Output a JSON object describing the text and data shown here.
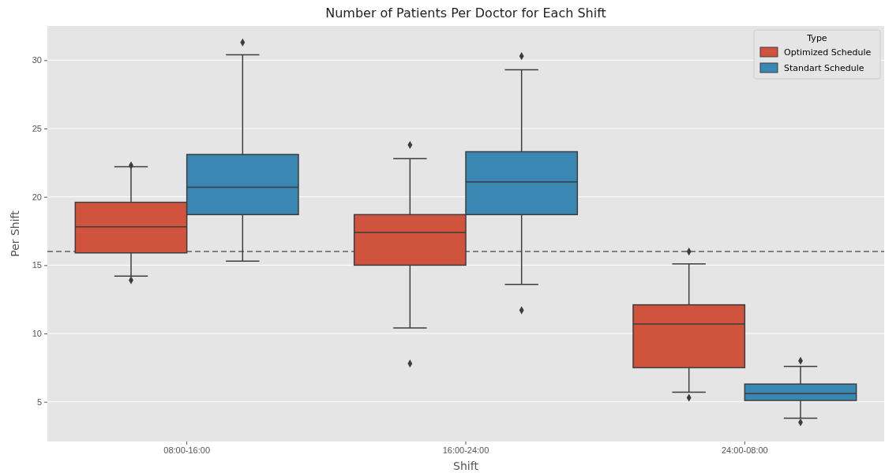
{
  "chart_data": {
    "type": "box",
    "title": "Number of Patients Per Doctor for Each Shift",
    "xlabel": "Shift",
    "ylabel": "Per Shift",
    "legend_title": "Type",
    "categories": [
      "08:00-16:00",
      "16:00-24:00",
      "24:00-08:00"
    ],
    "ylim": [
      2.1,
      32.5
    ],
    "yticks": [
      5,
      10,
      15,
      20,
      25,
      30
    ],
    "grid": "y",
    "legend": "top right",
    "ref_lines": [
      {
        "axis": "y",
        "value": 16,
        "color": "#808080",
        "line_style": "dashed"
      }
    ],
    "series": [
      {
        "name": "Optimized Schedule",
        "color": "#d0533e",
        "boxes": [
          {
            "low": 14.2,
            "q1": 15.9,
            "median": 17.8,
            "q3": 19.6,
            "high": 22.2,
            "outliers": [
              13.9,
              22.3
            ]
          },
          {
            "low": 10.4,
            "q1": 15.0,
            "median": 17.4,
            "q3": 18.7,
            "high": 22.8,
            "outliers": [
              7.8,
              23.8
            ]
          },
          {
            "low": 5.7,
            "q1": 7.5,
            "median": 10.7,
            "q3": 12.1,
            "high": 15.1,
            "outliers": [
              5.3,
              16.0
            ]
          }
        ]
      },
      {
        "name": "Standart Schedule",
        "color": "#3a87b4",
        "boxes": [
          {
            "low": 15.3,
            "q1": 18.7,
            "median": 20.7,
            "q3": 23.1,
            "high": 30.4,
            "outliers": [
              31.3
            ]
          },
          {
            "low": 13.6,
            "q1": 18.7,
            "median": 21.1,
            "q3": 23.3,
            "high": 29.3,
            "outliers": [
              11.7,
              30.3
            ]
          },
          {
            "low": 3.8,
            "q1": 5.1,
            "median": 5.6,
            "q3": 6.3,
            "high": 7.6,
            "outliers": [
              3.5,
              8.0
            ]
          }
        ]
      }
    ]
  }
}
